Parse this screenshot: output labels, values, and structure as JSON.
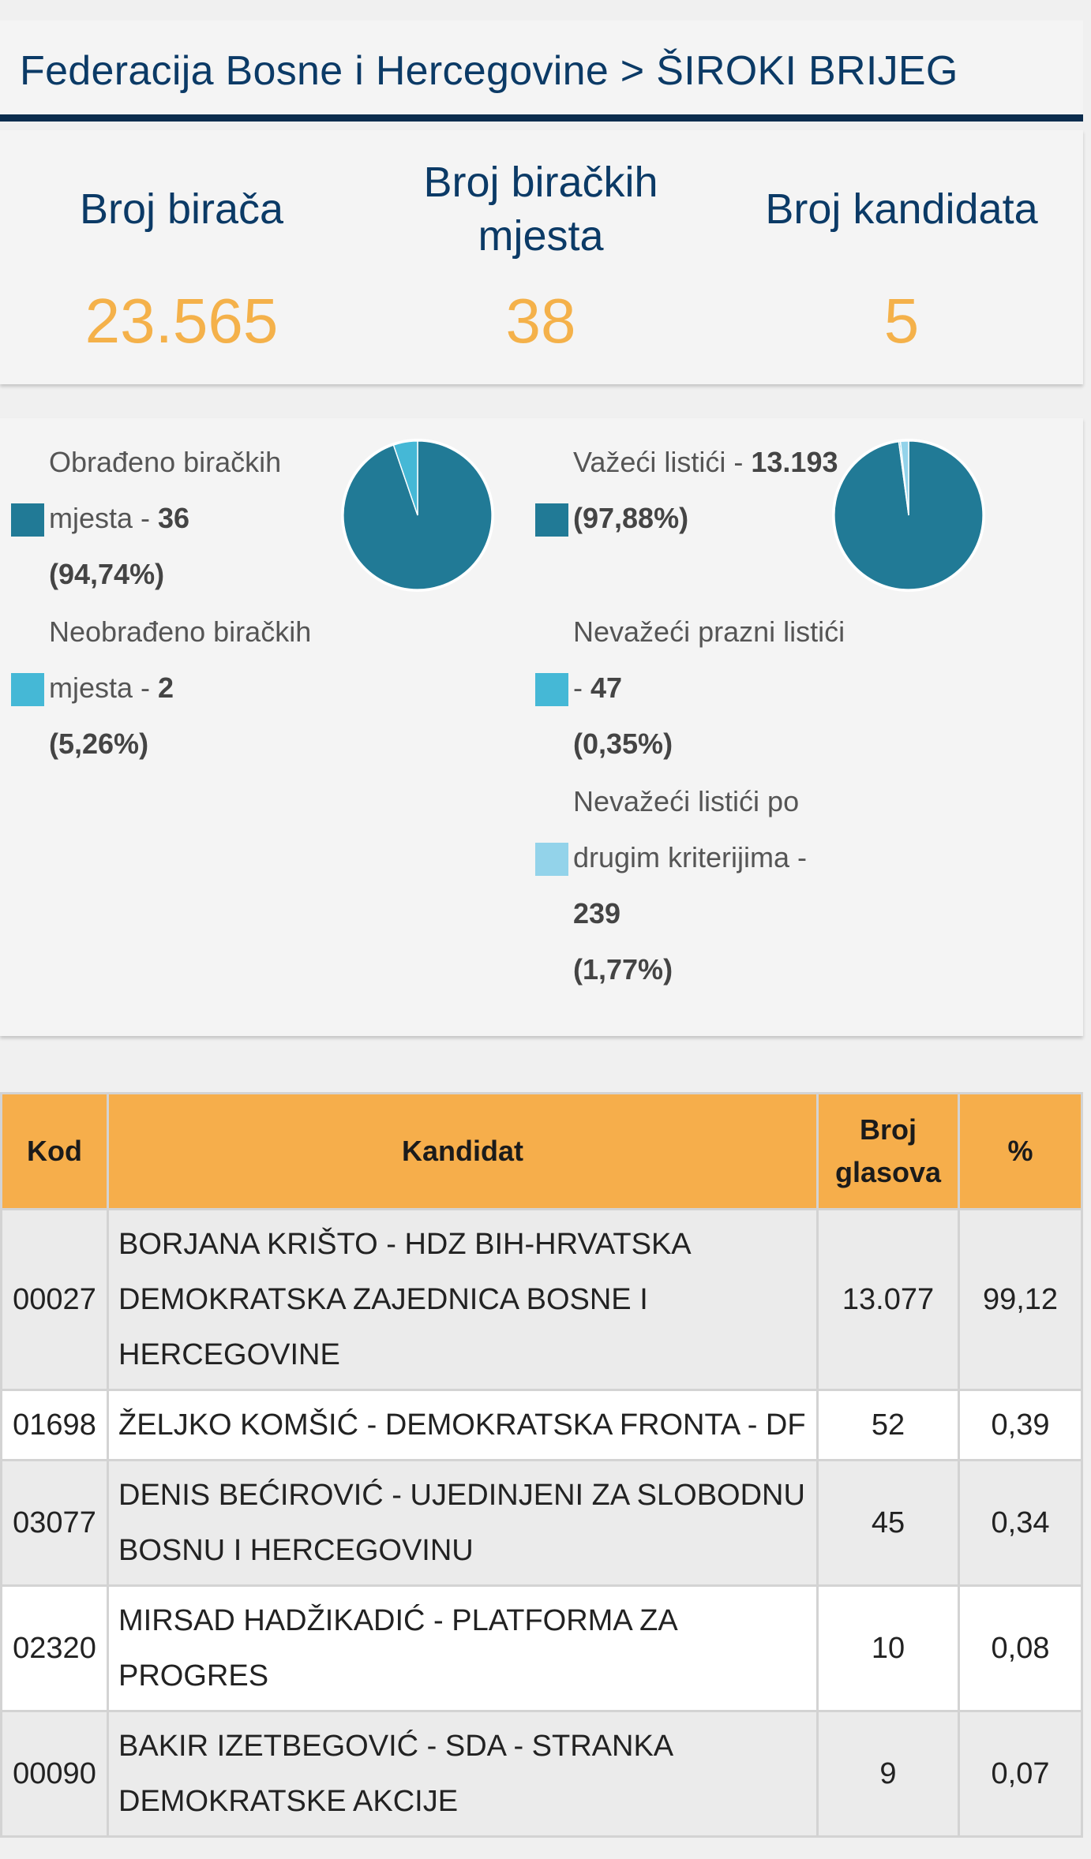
{
  "header": {
    "title": "Federacija Bosne i Hercegovine > ŠIROKI BRIJEG"
  },
  "stats": [
    {
      "label": "Broj birača",
      "value": "23.565"
    },
    {
      "label": "Broj biračkih mjesta",
      "value": "38"
    },
    {
      "label": "Broj kandidata",
      "value": "5"
    }
  ],
  "processing": {
    "items": [
      {
        "label": "Obrađeno biračkih mjesta - ",
        "count": "36",
        "percent": "(94,74%)",
        "fraction": 0.9474,
        "color": "#217a96"
      },
      {
        "label": "Neobrađeno biračkih mjesta - ",
        "count": "2",
        "percent": "(5,26%)",
        "fraction": 0.0526,
        "color": "#45b8d6"
      }
    ]
  },
  "ballots": {
    "items": [
      {
        "label": "Važeći listići - ",
        "count": "13.193",
        "percent": "(97,88%)",
        "fraction": 0.9788,
        "color": "#217a96"
      },
      {
        "label": "Nevažeći prazni listići - ",
        "count": "47",
        "percent": "(0,35%)",
        "fraction": 0.0035,
        "color": "#45b8d6"
      },
      {
        "label": "Nevažeći listići po drugim kriterijima - ",
        "count": "239",
        "percent": "(1,77%)",
        "fraction": 0.0177,
        "color": "#93d3ea"
      }
    ]
  },
  "table": {
    "headers": {
      "code": "Kod",
      "candidate": "Kandidat",
      "votes": "Broj glasova",
      "percent": "%"
    },
    "rows": [
      {
        "code": "00027",
        "candidate": "BORJANA KRIŠTO - HDZ BIH-HRVATSKA DEMOKRATSKA ZAJEDNICA BOSNE I HERCEGOVINE",
        "votes": "13.077",
        "percent": "99,12"
      },
      {
        "code": "01698",
        "candidate": "ŽELJKO KOMŠIĆ - DEMOKRATSKA FRONTA - DF",
        "votes": "52",
        "percent": "0,39"
      },
      {
        "code": "03077",
        "candidate": "DENIS BEĆIROVIĆ - UJEDINJENI ZA SLOBODNU BOSNU I HERCEGOVINU",
        "votes": "45",
        "percent": "0,34"
      },
      {
        "code": "02320",
        "candidate": "MIRSAD HADŽIKADIĆ - PLATFORMA ZA PROGRES",
        "votes": "10",
        "percent": "0,08"
      },
      {
        "code": "00090",
        "candidate": "BAKIR IZETBEGOVIĆ - SDA - STRANKA DEMOKRATSKE AKCIJE",
        "votes": "9",
        "percent": "0,07"
      }
    ]
  }
}
